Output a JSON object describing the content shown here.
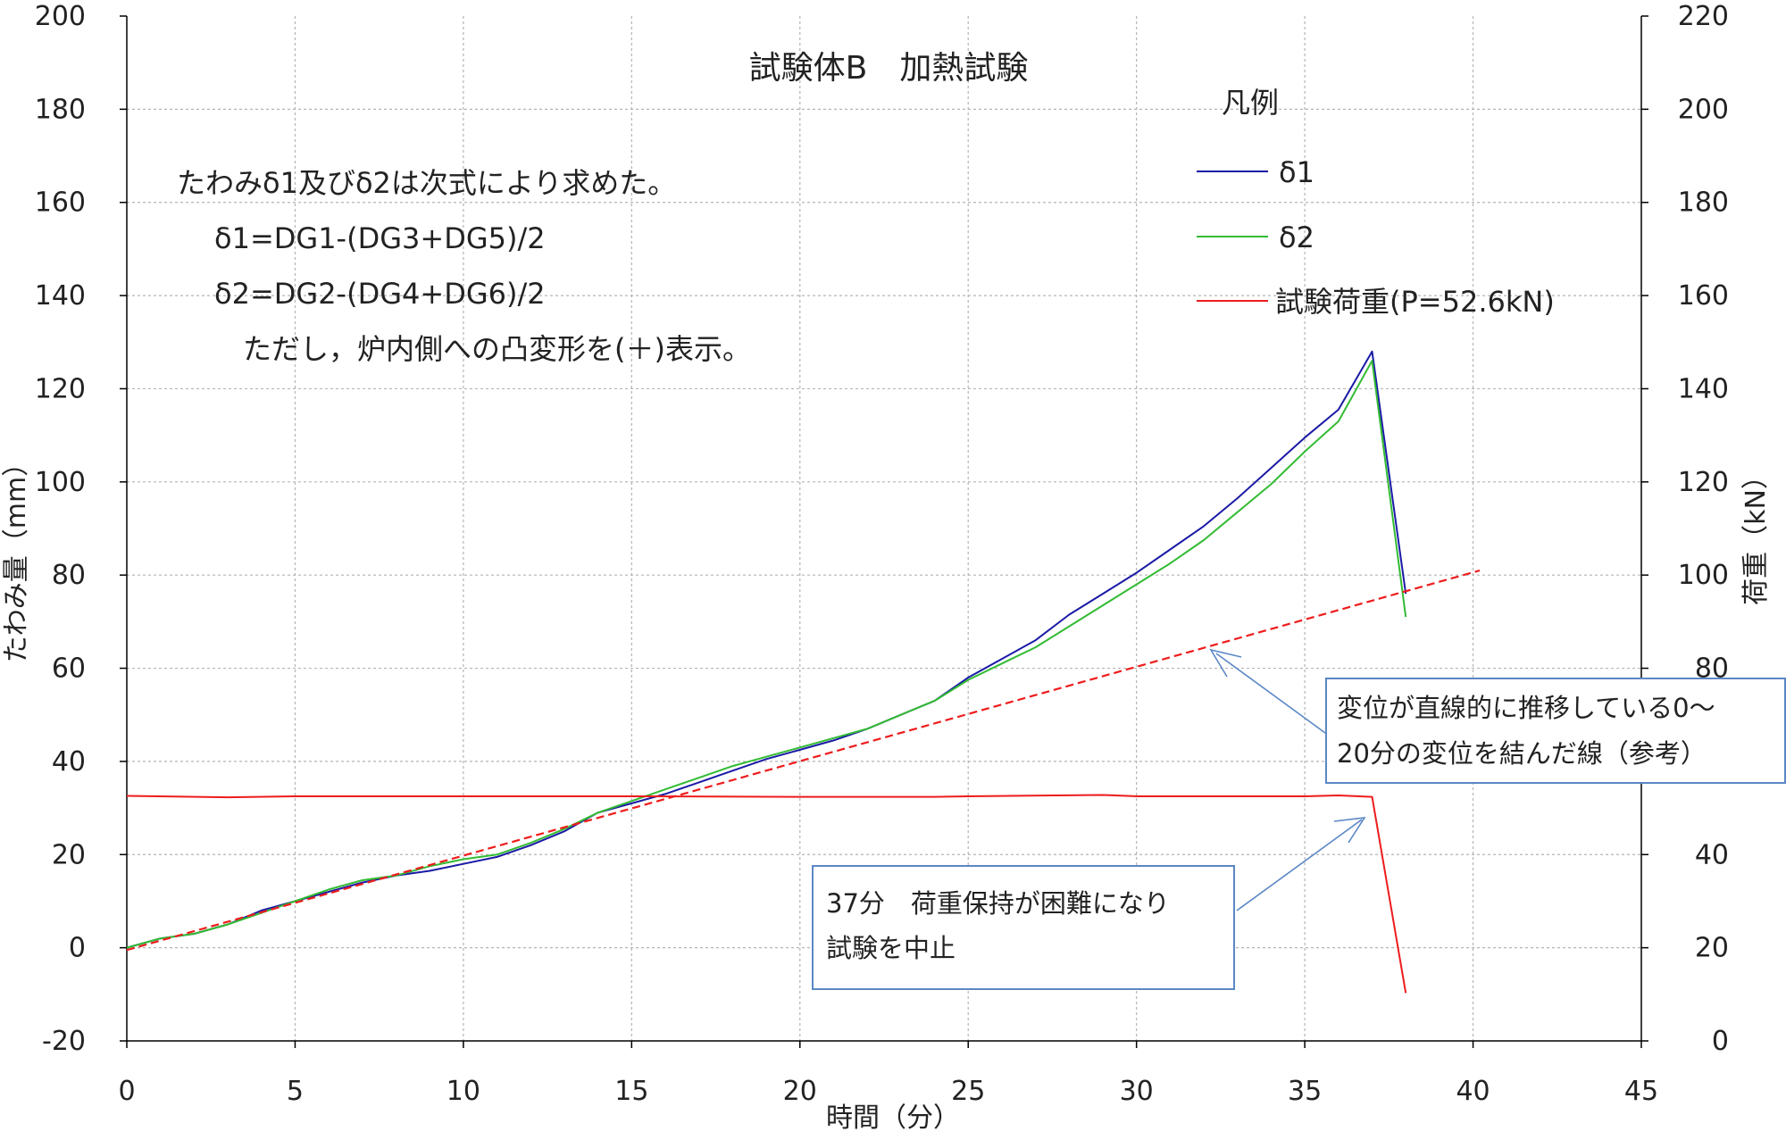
{
  "chart_data": {
    "type": "line",
    "title": "試験体B　加熱試験",
    "xlabel": "時間（分）",
    "ylabel": "たわみ量（mm）",
    "y2label": "荷重（kN）",
    "xlim": [
      0,
      45
    ],
    "ylim": [
      -20,
      200
    ],
    "y2lim": [
      0,
      220
    ],
    "xticks": [
      0,
      5,
      10,
      15,
      20,
      25,
      30,
      35,
      40,
      45
    ],
    "yticks": [
      -20,
      0,
      20,
      40,
      60,
      80,
      100,
      120,
      140,
      160,
      180,
      200
    ],
    "y2ticks": [
      0,
      20,
      40,
      60,
      80,
      100,
      120,
      140,
      160,
      180,
      200,
      220
    ],
    "grid": true,
    "legend": {
      "title": "凡例",
      "placement": "top-right",
      "entries": [
        "δ1",
        "δ2",
        "試験荷重(P=52.6kN)"
      ]
    },
    "notes": [
      "たわみδ1及びδ2は次式により求めた。",
      "δ1=DG1-(DG3+DG5)/2",
      "δ2=DG2-(DG4+DG6)/2",
      "ただし，炉内側への凸変形を(＋)表示。"
    ],
    "annotations": [
      {
        "lines": [
          "変位が直線的に推移している0～",
          "20分の変位を結んだ線（参考）"
        ]
      },
      {
        "lines": [
          "37分　荷重保持が困難になり",
          "試験を中止"
        ]
      }
    ],
    "series": [
      {
        "name": "δ1",
        "color": "#1a1aa6",
        "axis": "left",
        "x": [
          0,
          1,
          2,
          3,
          4,
          5,
          6,
          7,
          8,
          9,
          10,
          11,
          12,
          13,
          14,
          15,
          16,
          17,
          18,
          19,
          20,
          21,
          22,
          23,
          24,
          25,
          26,
          27,
          28,
          29,
          30,
          31,
          32,
          33,
          34,
          35,
          36,
          37,
          38
        ],
        "y": [
          0,
          2,
          3,
          5,
          8,
          10,
          12,
          14,
          15.5,
          16.5,
          18,
          19.5,
          22,
          25,
          29,
          31,
          33,
          35.5,
          38,
          40.5,
          42.5,
          44.5,
          47,
          50,
          53,
          58,
          62,
          66,
          71.5,
          76,
          80.5,
          85.5,
          90.5,
          96.5,
          103,
          109.5,
          115.5,
          128,
          76
        ]
      },
      {
        "name": "δ2",
        "color": "#33bb33",
        "axis": "left",
        "x": [
          0,
          1,
          2,
          3,
          4,
          5,
          6,
          7,
          8,
          9,
          10,
          11,
          12,
          13,
          14,
          15,
          16,
          17,
          18,
          19,
          20,
          21,
          22,
          23,
          24,
          25,
          26,
          27,
          28,
          29,
          30,
          31,
          32,
          33,
          34,
          35,
          36,
          37,
          38
        ],
        "y": [
          0,
          2,
          3,
          5,
          7.5,
          10,
          12.5,
          14.5,
          15.5,
          17.5,
          19,
          20,
          22.5,
          25.5,
          29,
          31.5,
          34,
          36.5,
          39,
          41,
          43,
          45,
          47,
          50,
          53,
          57.5,
          61,
          64.5,
          69,
          73.5,
          78,
          82.5,
          87.5,
          93.5,
          99.5,
          106.5,
          113,
          126,
          71
        ]
      },
      {
        "name": "試験荷重(P=52.6kN)",
        "color": "#ee1c1c",
        "axis": "right",
        "x": [
          0,
          3,
          5,
          10,
          15,
          20,
          24,
          25,
          29,
          30,
          35,
          36,
          37,
          38
        ],
        "y": [
          52.6,
          52.3,
          52.5,
          52.5,
          52.5,
          52.4,
          52.4,
          52.5,
          52.8,
          52.5,
          52.5,
          52.7,
          52.4,
          10.3
        ]
      },
      {
        "color": "#ee1c1c",
        "axis": "left",
        "dashed": true,
        "x": [
          0,
          40.2
        ],
        "y": [
          -0.5,
          81
        ]
      }
    ]
  }
}
